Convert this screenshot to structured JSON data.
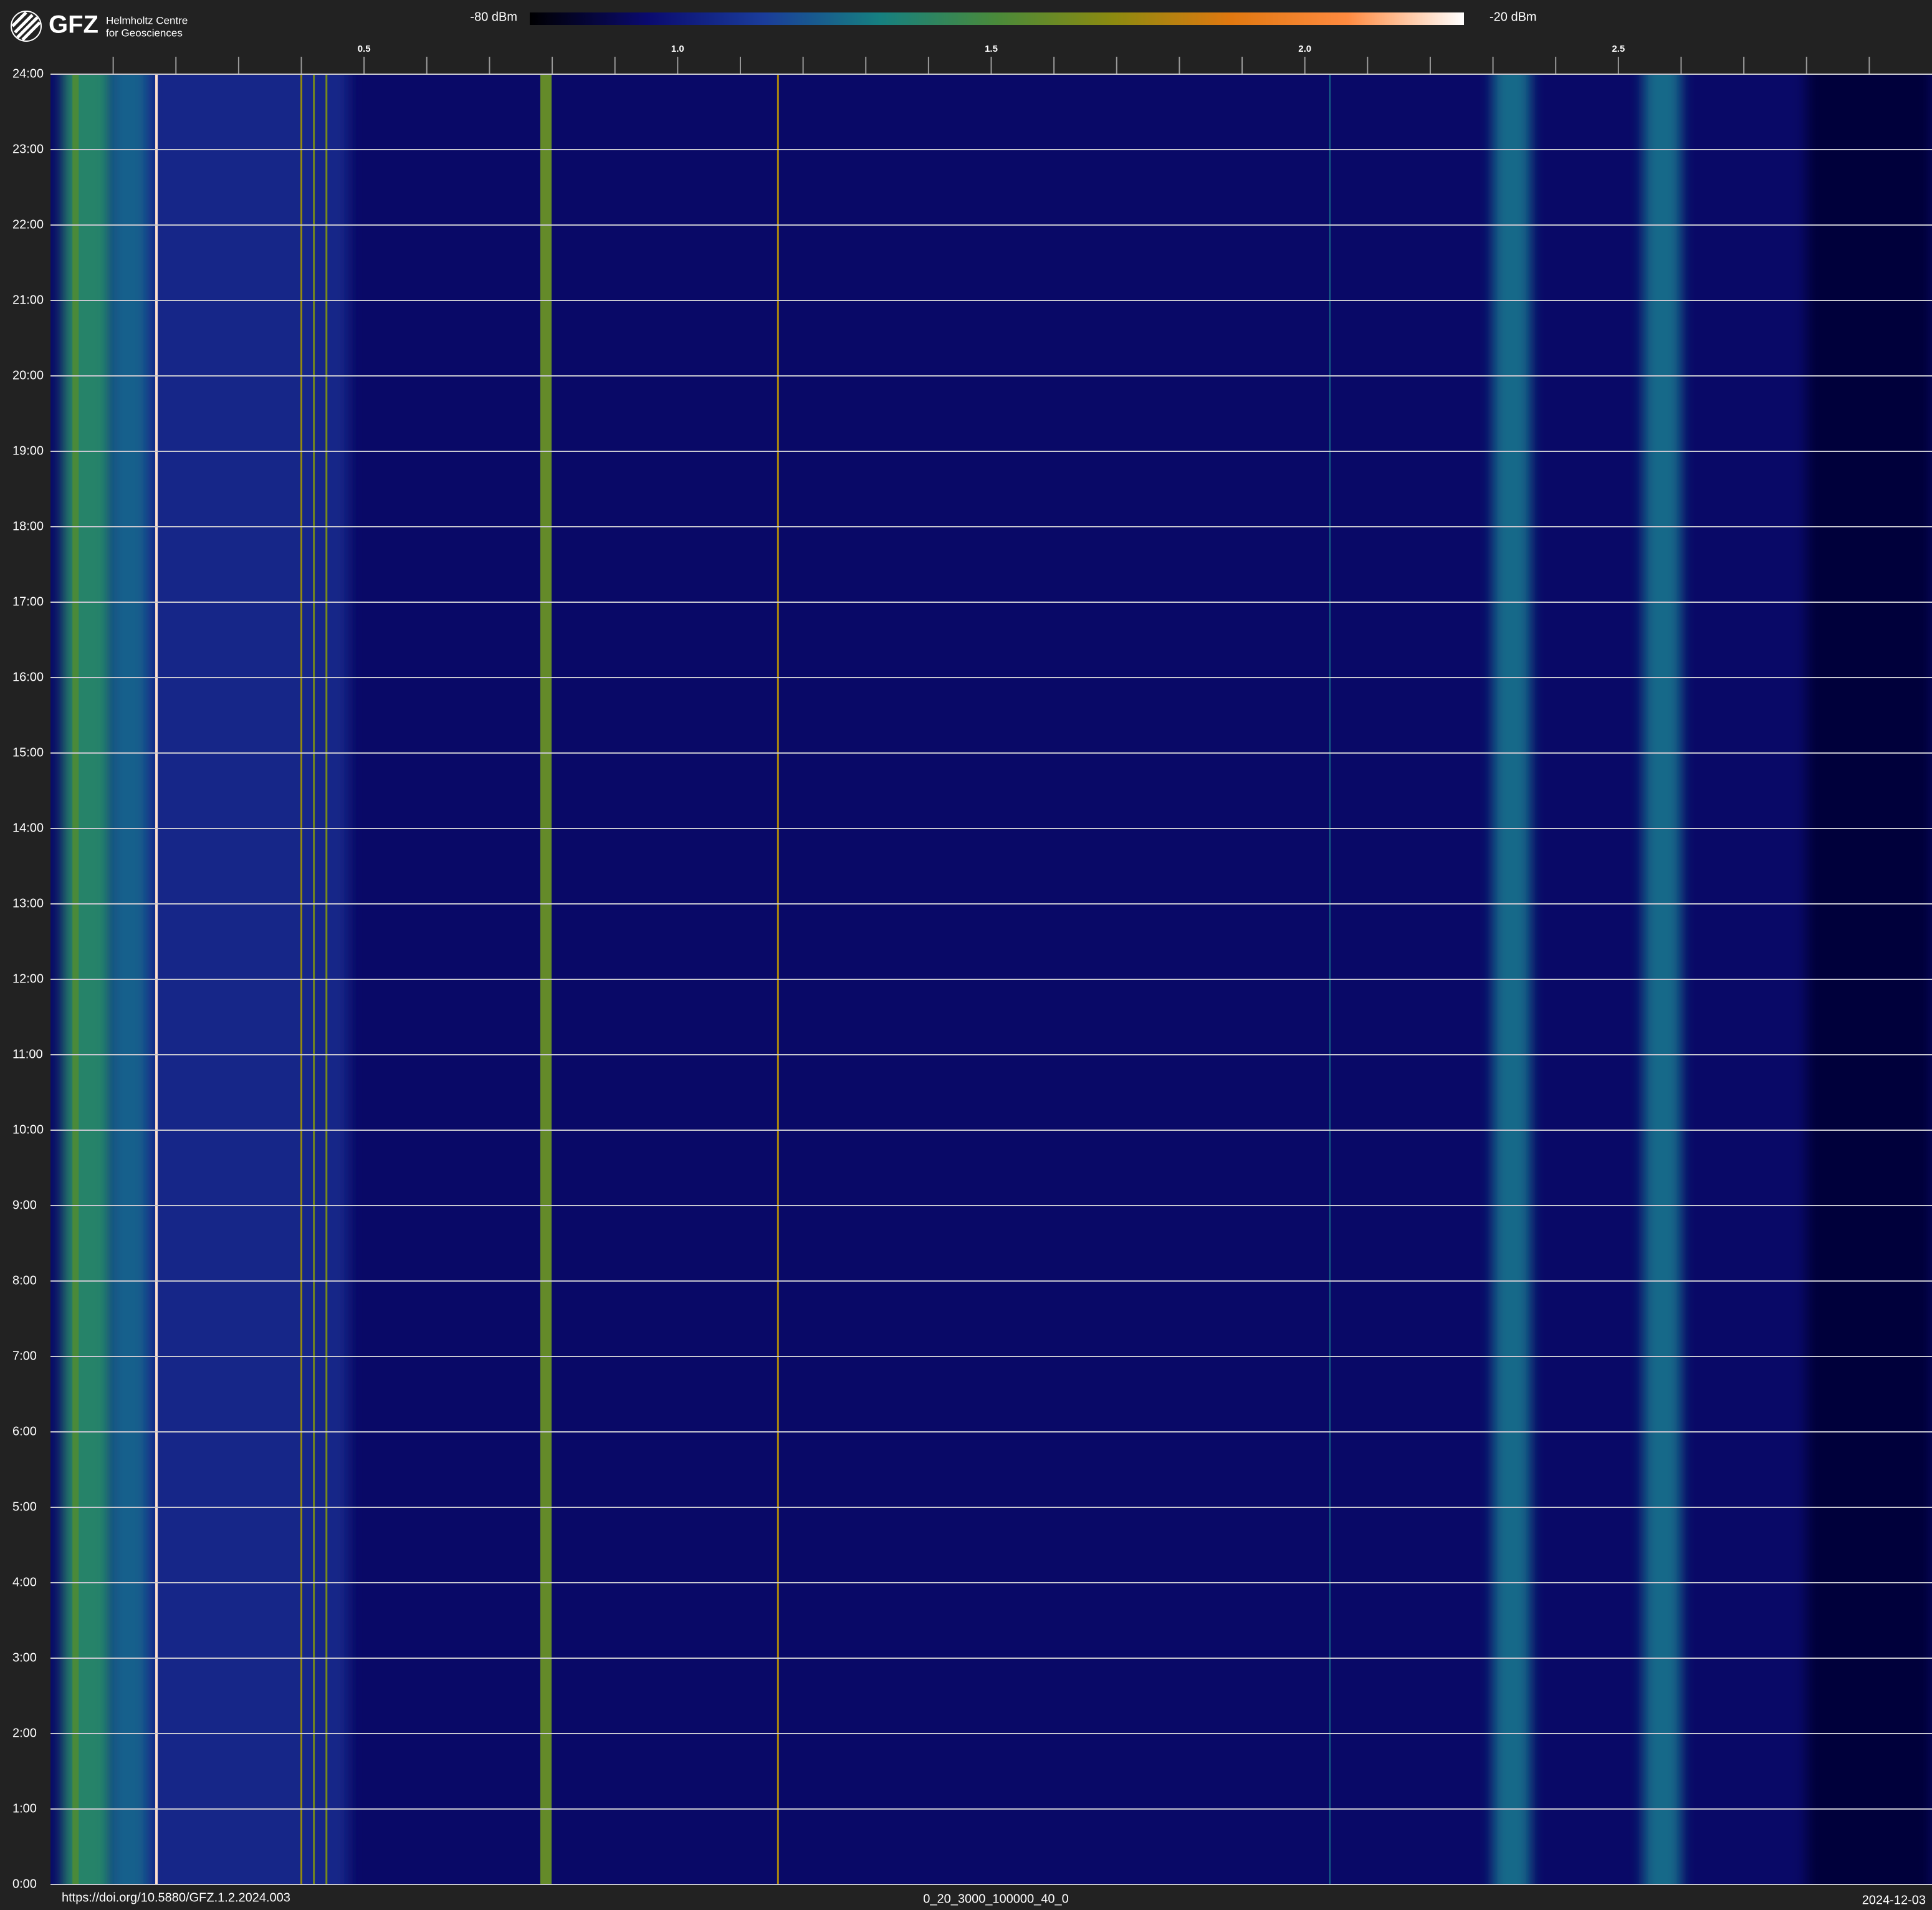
{
  "logo": {
    "name": "GFZ",
    "line1": "Helmholtz Centre",
    "line2": "for Geosciences"
  },
  "chart_data": {
    "type": "spectrogram",
    "clim": [
      -80,
      -20
    ],
    "clim_labels": [
      "-80 dBm",
      "-20 dBm"
    ],
    "colormap": [
      "#000000",
      "#0a0a6e",
      "#1a3c9a",
      "#168080",
      "#4a8a3a",
      "#8c8a10",
      "#e07810",
      "#ff8a40",
      "#ffffff"
    ],
    "xlim": [
      0,
      3.0
    ],
    "xticks": [
      0.5,
      {
        "value": 1,
        "label": "1.0"
      },
      1.5,
      {
        "value": 2,
        "label": "2.0"
      },
      2.5
    ],
    "x_minor_ticks": [
      0.1,
      0.2,
      0.3,
      0.4,
      0.6,
      0.7,
      0.8,
      0.9,
      1.1,
      1.2,
      1.3,
      1.4,
      1.6,
      1.7,
      1.8,
      1.9,
      2.1,
      2.2,
      2.3,
      2.4,
      2.6,
      2.7,
      2.8,
      2.9
    ],
    "ylim": [
      0,
      24
    ],
    "yticks": [
      {
        "value": 0,
        "label": "0:00"
      },
      {
        "value": 1,
        "label": "1:00"
      },
      {
        "value": 2,
        "label": "2:00"
      },
      {
        "value": 3,
        "label": "3:00"
      },
      {
        "value": 4,
        "label": "4:00"
      },
      {
        "value": 5,
        "label": "5:00"
      },
      {
        "value": 6,
        "label": "6:00"
      },
      {
        "value": 7,
        "label": "7:00"
      },
      {
        "value": 8,
        "label": "8:00"
      },
      {
        "value": 9,
        "label": "9:00"
      },
      {
        "value": 10,
        "label": "10:00"
      },
      {
        "value": 11,
        "label": "11:00"
      },
      {
        "value": 12,
        "label": "12:00"
      },
      {
        "value": 13,
        "label": "13:00"
      },
      {
        "value": 14,
        "label": "14:00"
      },
      {
        "value": 15,
        "label": "15:00"
      },
      {
        "value": 16,
        "label": "16:00"
      },
      {
        "value": 17,
        "label": "17:00"
      },
      {
        "value": 18,
        "label": "18:00"
      },
      {
        "value": 19,
        "label": "19:00"
      },
      {
        "value": 20,
        "label": "20:00"
      },
      {
        "value": 21,
        "label": "21:00"
      },
      {
        "value": 22,
        "label": "22:00"
      },
      {
        "value": 23,
        "label": "23:00"
      },
      {
        "value": 24,
        "label": "24:00"
      }
    ],
    "grid": true,
    "background_level": -73,
    "bands": [
      {
        "f": 0.3,
        "width": 0.35,
        "level": -68
      },
      {
        "f": 2.9,
        "width": 0.2,
        "level": -76
      },
      {
        "f": 0.06,
        "width": 0.08,
        "level": -55
      },
      {
        "f": 0.125,
        "width": 0.06,
        "level": -61
      },
      {
        "f": 0.04,
        "width": 0.01,
        "level": -50
      },
      {
        "f": 0.169,
        "width": 0.004,
        "level": -22
      },
      {
        "f": 0.4,
        "width": 0.003,
        "level": -42
      },
      {
        "f": 0.42,
        "width": 0.003,
        "level": -45
      },
      {
        "f": 0.44,
        "width": 0.003,
        "level": -45
      },
      {
        "f": 0.79,
        "width": 0.018,
        "level": -47
      },
      {
        "f": 1.16,
        "width": 0.003,
        "level": -40
      },
      {
        "f": 2.04,
        "width": 0.002,
        "level": -60
      },
      {
        "f": 2.33,
        "width": 0.06,
        "level": -60
      },
      {
        "f": 2.57,
        "width": 0.06,
        "level": -60
      }
    ]
  },
  "footer": {
    "doi": "https://doi.org/10.5880/GFZ.1.2.2024.003",
    "params": "0_20_3000_100000_40_0",
    "date": "2024-12-03"
  }
}
